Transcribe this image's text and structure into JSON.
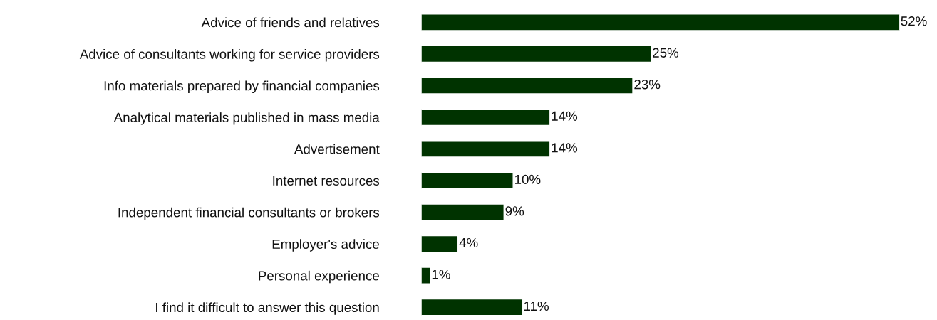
{
  "chart_data": {
    "type": "bar",
    "orientation": "horizontal",
    "categories": [
      "Advice of friends and relatives",
      "Advice of consultants working for service providers",
      "Info materials prepared by financial companies",
      "Analytical materials published in mass media",
      "Advertisement",
      "Internet resources",
      "Independent financial consultants or brokers",
      "Employer's advice",
      "Personal experience",
      "I find it difficult to answer this question"
    ],
    "values": [
      52,
      25,
      23,
      14,
      14,
      10,
      9,
      4,
      1,
      11
    ],
    "value_labels": [
      "52%",
      "25%",
      "23%",
      "14%",
      "14%",
      "10%",
      "9%",
      "4%",
      "1%",
      "11%"
    ],
    "color": "#003300",
    "xlim": [
      0,
      52
    ],
    "tick_labels": "y",
    "grid": false,
    "legend": false
  }
}
